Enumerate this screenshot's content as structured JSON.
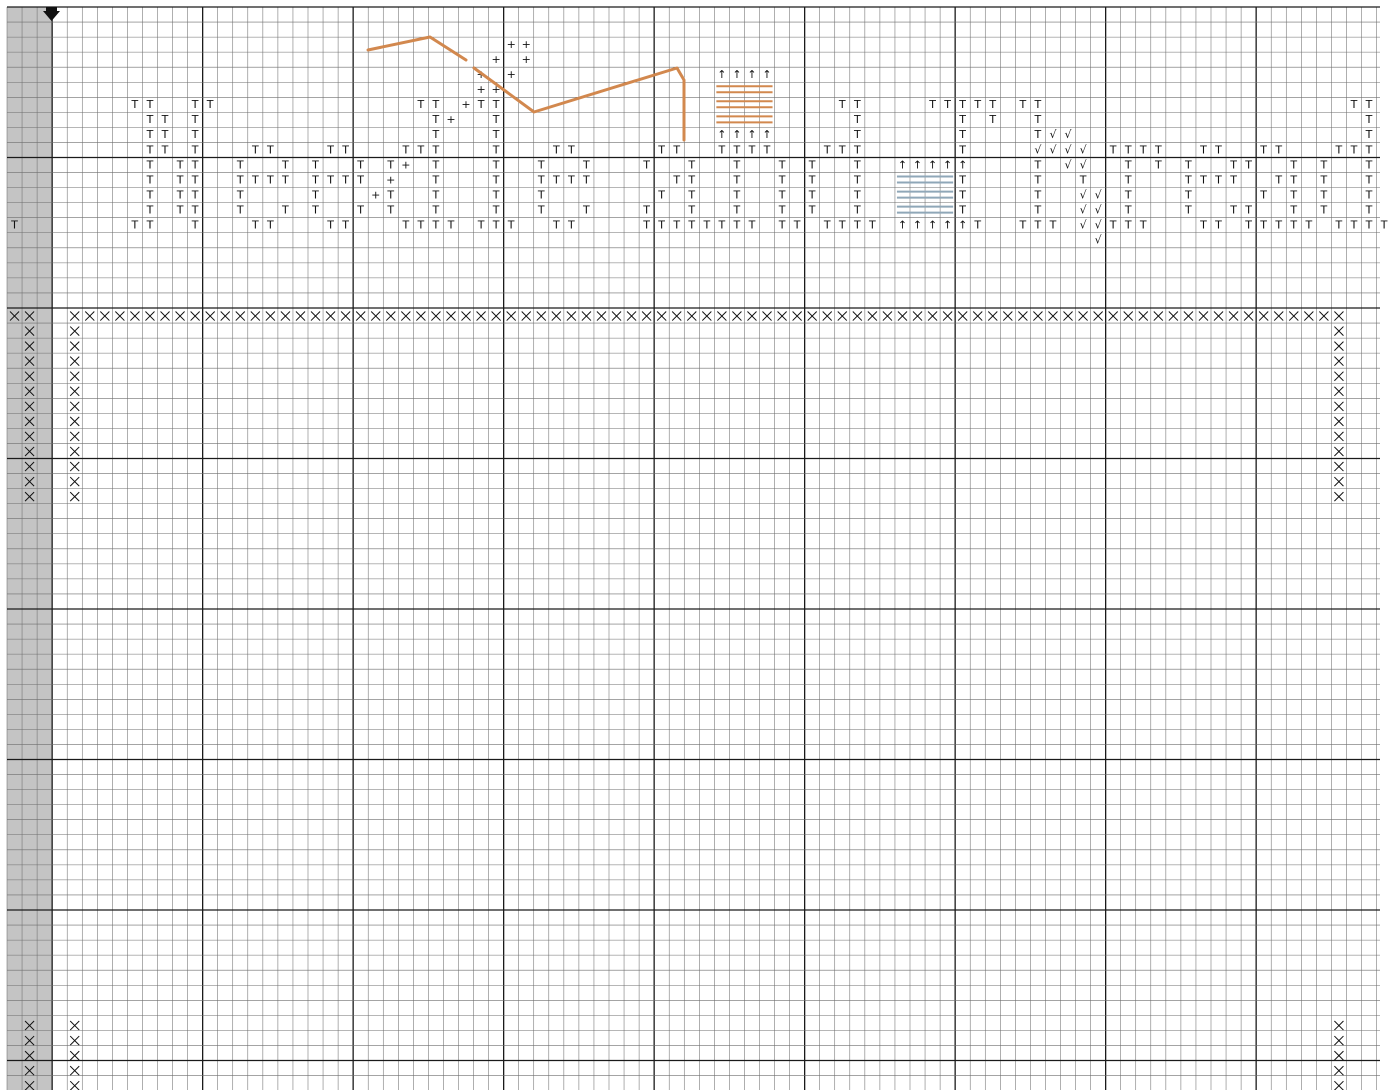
{
  "colors": {
    "background": "#ffffff",
    "grid_minor": "#6e6e6e",
    "grid_major": "#1a1a1a",
    "row_header_fill": "#c4c4c4",
    "backstitch_orange": "#d2884e",
    "fill_blue": "#8fa7b8",
    "marker": "#111111"
  },
  "icons": {
    "row_marker": "down-arrow-marker-icon",
    "cross": "cross-stitch-x-icon"
  },
  "symbols": {
    "t": "T",
    "plus": "+",
    "check": "√",
    "arrow": "↑",
    "cross": "⨯"
  },
  "grid": {
    "columns": 89,
    "rows": 72,
    "major_every": 10
  },
  "rows": [
    {
      "row": 0,
      "cells": []
    },
    {
      "row": 2,
      "cells": [
        [
          30,
          "plus"
        ],
        [
          31,
          "plus"
        ]
      ]
    },
    {
      "row": 3,
      "cells": [
        [
          29,
          "plus"
        ],
        [
          31,
          "plus"
        ]
      ]
    },
    {
      "row": 4,
      "cells": [
        [
          28,
          "plus"
        ],
        [
          30,
          "plus"
        ],
        [
          44,
          "arrow"
        ],
        [
          45,
          "arrow"
        ],
        [
          46,
          "arrow"
        ],
        [
          47,
          "arrow"
        ]
      ]
    },
    {
      "row": 5,
      "cells": [
        [
          28,
          "plus"
        ],
        [
          29,
          "plus"
        ]
      ]
    },
    {
      "row": 6,
      "cells": [
        [
          5,
          "t"
        ],
        [
          6,
          "t"
        ],
        [
          9,
          "t"
        ],
        [
          10,
          "t"
        ],
        [
          24,
          "t"
        ],
        [
          25,
          "t"
        ],
        [
          27,
          "plus"
        ],
        [
          28,
          "t"
        ],
        [
          29,
          "t"
        ],
        [
          52,
          "t"
        ],
        [
          53,
          "t"
        ],
        [
          58,
          "t"
        ],
        [
          59,
          "t"
        ],
        [
          60,
          "t"
        ],
        [
          61,
          "t"
        ],
        [
          62,
          "t"
        ],
        [
          64,
          "t"
        ],
        [
          65,
          "t"
        ],
        [
          86,
          "t"
        ],
        [
          87,
          "t"
        ]
      ]
    },
    {
      "row": 7,
      "cells": [
        [
          6,
          "t"
        ],
        [
          7,
          "t"
        ],
        [
          9,
          "t"
        ],
        [
          25,
          "t"
        ],
        [
          26,
          "plus"
        ],
        [
          29,
          "t"
        ],
        [
          53,
          "t"
        ],
        [
          60,
          "t"
        ],
        [
          62,
          "t"
        ],
        [
          65,
          "t"
        ],
        [
          87,
          "t"
        ]
      ]
    },
    {
      "row": 8,
      "cells": [
        [
          6,
          "t"
        ],
        [
          7,
          "t"
        ],
        [
          9,
          "t"
        ],
        [
          25,
          "t"
        ],
        [
          29,
          "t"
        ],
        [
          44,
          "arrow"
        ],
        [
          45,
          "arrow"
        ],
        [
          46,
          "arrow"
        ],
        [
          47,
          "arrow"
        ],
        [
          53,
          "t"
        ],
        [
          60,
          "t"
        ],
        [
          65,
          "t"
        ],
        [
          66,
          "check"
        ],
        [
          67,
          "check"
        ],
        [
          87,
          "t"
        ]
      ]
    },
    {
      "row": 9,
      "cells": [
        [
          6,
          "t"
        ],
        [
          7,
          "t"
        ],
        [
          9,
          "t"
        ],
        [
          13,
          "t"
        ],
        [
          14,
          "t"
        ],
        [
          18,
          "t"
        ],
        [
          19,
          "t"
        ],
        [
          23,
          "t"
        ],
        [
          24,
          "t"
        ],
        [
          25,
          "t"
        ],
        [
          29,
          "t"
        ],
        [
          33,
          "t"
        ],
        [
          34,
          "t"
        ],
        [
          40,
          "t"
        ],
        [
          41,
          "t"
        ],
        [
          44,
          "t"
        ],
        [
          45,
          "t"
        ],
        [
          46,
          "t"
        ],
        [
          47,
          "t"
        ],
        [
          51,
          "t"
        ],
        [
          52,
          "t"
        ],
        [
          53,
          "t"
        ],
        [
          60,
          "t"
        ],
        [
          65,
          "check"
        ],
        [
          66,
          "check"
        ],
        [
          67,
          "check"
        ],
        [
          68,
          "check"
        ],
        [
          70,
          "t"
        ],
        [
          71,
          "t"
        ],
        [
          72,
          "t"
        ],
        [
          73,
          "t"
        ],
        [
          76,
          "t"
        ],
        [
          77,
          "t"
        ],
        [
          80,
          "t"
        ],
        [
          81,
          "t"
        ],
        [
          85,
          "t"
        ],
        [
          86,
          "t"
        ],
        [
          87,
          "t"
        ]
      ]
    },
    {
      "row": 10,
      "cells": [
        [
          6,
          "t"
        ],
        [
          8,
          "t"
        ],
        [
          9,
          "t"
        ],
        [
          12,
          "t"
        ],
        [
          15,
          "t"
        ],
        [
          17,
          "t"
        ],
        [
          20,
          "t"
        ],
        [
          22,
          "t"
        ],
        [
          23,
          "plus"
        ],
        [
          25,
          "t"
        ],
        [
          29,
          "t"
        ],
        [
          32,
          "t"
        ],
        [
          35,
          "t"
        ],
        [
          39,
          "t"
        ],
        [
          42,
          "t"
        ],
        [
          45,
          "t"
        ],
        [
          48,
          "t"
        ],
        [
          50,
          "t"
        ],
        [
          53,
          "t"
        ],
        [
          56,
          "arrow"
        ],
        [
          57,
          "arrow"
        ],
        [
          58,
          "arrow"
        ],
        [
          59,
          "arrow"
        ],
        [
          60,
          "arrow"
        ],
        [
          65,
          "t"
        ],
        [
          67,
          "check"
        ],
        [
          68,
          "check"
        ],
        [
          71,
          "t"
        ],
        [
          73,
          "t"
        ],
        [
          75,
          "t"
        ],
        [
          78,
          "t"
        ],
        [
          79,
          "t"
        ],
        [
          82,
          "t"
        ],
        [
          84,
          "t"
        ],
        [
          87,
          "t"
        ]
      ]
    },
    {
      "row": 11,
      "cells": [
        [
          6,
          "t"
        ],
        [
          8,
          "t"
        ],
        [
          9,
          "t"
        ],
        [
          12,
          "t"
        ],
        [
          13,
          "t"
        ],
        [
          14,
          "t"
        ],
        [
          15,
          "t"
        ],
        [
          17,
          "t"
        ],
        [
          18,
          "t"
        ],
        [
          19,
          "t"
        ],
        [
          20,
          "t"
        ],
        [
          22,
          "plus"
        ],
        [
          25,
          "t"
        ],
        [
          29,
          "t"
        ],
        [
          32,
          "t"
        ],
        [
          33,
          "t"
        ],
        [
          34,
          "t"
        ],
        [
          35,
          "t"
        ],
        [
          41,
          "t"
        ],
        [
          42,
          "t"
        ],
        [
          45,
          "t"
        ],
        [
          48,
          "t"
        ],
        [
          50,
          "t"
        ],
        [
          53,
          "t"
        ],
        [
          60,
          "t"
        ],
        [
          65,
          "t"
        ],
        [
          68,
          "t"
        ],
        [
          71,
          "t"
        ],
        [
          75,
          "t"
        ],
        [
          76,
          "t"
        ],
        [
          77,
          "t"
        ],
        [
          78,
          "t"
        ],
        [
          81,
          "t"
        ],
        [
          82,
          "t"
        ],
        [
          84,
          "t"
        ],
        [
          87,
          "t"
        ]
      ]
    },
    {
      "row": 12,
      "cells": [
        [
          6,
          "t"
        ],
        [
          8,
          "t"
        ],
        [
          9,
          "t"
        ],
        [
          12,
          "t"
        ],
        [
          17,
          "t"
        ],
        [
          21,
          "plus"
        ],
        [
          22,
          "t"
        ],
        [
          25,
          "t"
        ],
        [
          29,
          "t"
        ],
        [
          32,
          "t"
        ],
        [
          40,
          "t"
        ],
        [
          42,
          "t"
        ],
        [
          45,
          "t"
        ],
        [
          48,
          "t"
        ],
        [
          50,
          "t"
        ],
        [
          53,
          "t"
        ],
        [
          60,
          "t"
        ],
        [
          65,
          "t"
        ],
        [
          68,
          "check"
        ],
        [
          69,
          "check"
        ],
        [
          71,
          "t"
        ],
        [
          75,
          "t"
        ],
        [
          80,
          "t"
        ],
        [
          82,
          "t"
        ],
        [
          84,
          "t"
        ],
        [
          87,
          "t"
        ]
      ]
    },
    {
      "row": 13,
      "cells": [
        [
          6,
          "t"
        ],
        [
          8,
          "t"
        ],
        [
          9,
          "t"
        ],
        [
          12,
          "t"
        ],
        [
          15,
          "t"
        ],
        [
          17,
          "t"
        ],
        [
          20,
          "t"
        ],
        [
          22,
          "t"
        ],
        [
          25,
          "t"
        ],
        [
          29,
          "t"
        ],
        [
          32,
          "t"
        ],
        [
          35,
          "t"
        ],
        [
          39,
          "t"
        ],
        [
          42,
          "t"
        ],
        [
          45,
          "t"
        ],
        [
          48,
          "t"
        ],
        [
          50,
          "t"
        ],
        [
          53,
          "t"
        ],
        [
          60,
          "t"
        ],
        [
          65,
          "t"
        ],
        [
          68,
          "check"
        ],
        [
          69,
          "check"
        ],
        [
          71,
          "t"
        ],
        [
          75,
          "t"
        ],
        [
          78,
          "t"
        ],
        [
          79,
          "t"
        ],
        [
          82,
          "t"
        ],
        [
          84,
          "t"
        ],
        [
          87,
          "t"
        ]
      ]
    },
    {
      "row": 14,
      "cells": [
        [
          0,
          "t"
        ],
        [
          5,
          "t"
        ],
        [
          6,
          "t"
        ],
        [
          9,
          "t"
        ],
        [
          13,
          "t"
        ],
        [
          14,
          "t"
        ],
        [
          18,
          "t"
        ],
        [
          19,
          "t"
        ],
        [
          23,
          "t"
        ],
        [
          24,
          "t"
        ],
        [
          25,
          "t"
        ],
        [
          26,
          "t"
        ],
        [
          28,
          "t"
        ],
        [
          29,
          "t"
        ],
        [
          30,
          "t"
        ],
        [
          33,
          "t"
        ],
        [
          34,
          "t"
        ],
        [
          39,
          "t"
        ],
        [
          40,
          "t"
        ],
        [
          41,
          "t"
        ],
        [
          42,
          "t"
        ],
        [
          43,
          "t"
        ],
        [
          44,
          "t"
        ],
        [
          45,
          "t"
        ],
        [
          46,
          "t"
        ],
        [
          48,
          "t"
        ],
        [
          49,
          "t"
        ],
        [
          51,
          "t"
        ],
        [
          52,
          "t"
        ],
        [
          53,
          "t"
        ],
        [
          54,
          "t"
        ],
        [
          56,
          "arrow"
        ],
        [
          57,
          "arrow"
        ],
        [
          58,
          "arrow"
        ],
        [
          59,
          "arrow"
        ],
        [
          60,
          "arrow"
        ],
        [
          61,
          "t"
        ],
        [
          64,
          "t"
        ],
        [
          65,
          "t"
        ],
        [
          66,
          "t"
        ],
        [
          68,
          "check"
        ],
        [
          69,
          "check"
        ],
        [
          70,
          "t"
        ],
        [
          71,
          "t"
        ],
        [
          72,
          "t"
        ],
        [
          76,
          "t"
        ],
        [
          77,
          "t"
        ],
        [
          79,
          "t"
        ],
        [
          80,
          "t"
        ],
        [
          81,
          "t"
        ],
        [
          82,
          "t"
        ],
        [
          83,
          "t"
        ],
        [
          85,
          "t"
        ],
        [
          86,
          "t"
        ],
        [
          87,
          "t"
        ],
        [
          88,
          "t"
        ]
      ]
    },
    {
      "row": 15,
      "cells": [
        [
          69,
          "check"
        ]
      ]
    }
  ]
}
